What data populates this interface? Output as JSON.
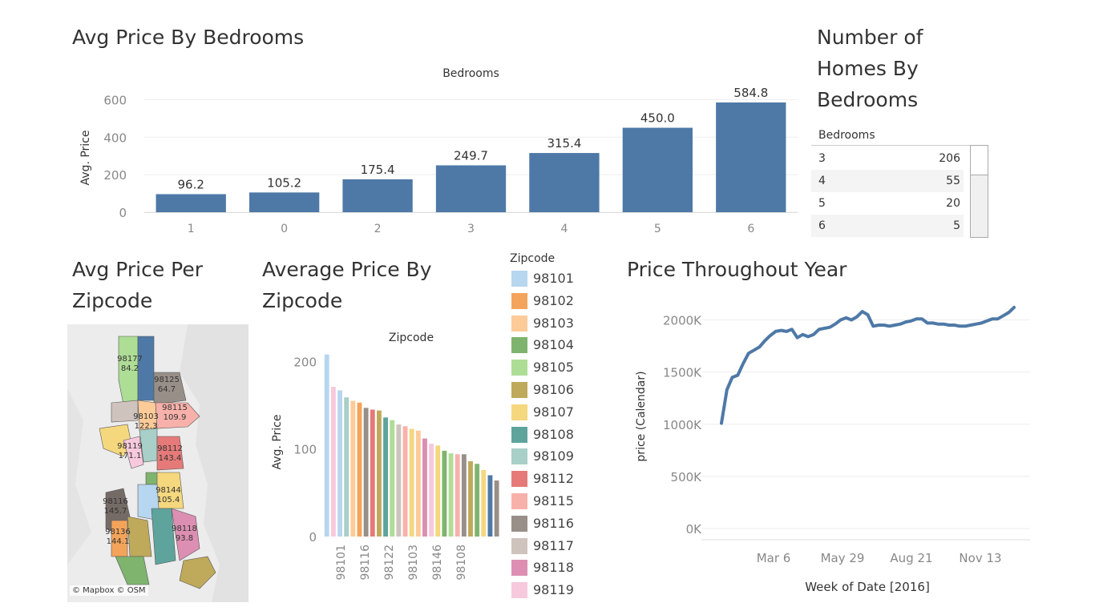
{
  "dashboard": {
    "bedroom_chart_title": "Avg Price By Bedrooms",
    "count_table_title": [
      "Number of",
      "Homes By",
      "Bedrooms"
    ],
    "map_title": [
      "Avg Price Per",
      "Zipcode"
    ],
    "zip_chart_title": [
      "Average Price By",
      "Zipcode"
    ],
    "line_chart_title": "Price Throughout Year"
  },
  "bedroom_table": {
    "header": "Bedrooms",
    "rows": [
      {
        "bedrooms": "3",
        "count": "206"
      },
      {
        "bedrooms": "4",
        "count": "55"
      },
      {
        "bedrooms": "5",
        "count": "20"
      },
      {
        "bedrooms": "6",
        "count": "5"
      }
    ]
  },
  "map": {
    "attribution": "© Mapbox © OSM",
    "labels": [
      {
        "zip": "98177",
        "value": "84.2"
      },
      {
        "zip": "98125",
        "value": "64.7"
      },
      {
        "zip": "98115",
        "value": "109.9"
      },
      {
        "zip": "98103",
        "value": "122.3"
      },
      {
        "zip": "98119",
        "value": "171.1"
      },
      {
        "zip": "98112",
        "value": "143.4"
      },
      {
        "zip": "98144",
        "value": "105.4"
      },
      {
        "zip": "98116",
        "value": "145.7"
      },
      {
        "zip": "98136",
        "value": "144.1"
      },
      {
        "zip": "98118",
        "value": "93.8"
      }
    ]
  },
  "legend": {
    "title": "Zipcode",
    "items": [
      {
        "zip": "98101",
        "color": "#b7d6ef"
      },
      {
        "zip": "98102",
        "color": "#f4a45a"
      },
      {
        "zip": "98103",
        "color": "#fdcb98"
      },
      {
        "zip": "98104",
        "color": "#7fb46f"
      },
      {
        "zip": "98105",
        "color": "#aedd96"
      },
      {
        "zip": "98106",
        "color": "#bfa95a"
      },
      {
        "zip": "98107",
        "color": "#f5d77e"
      },
      {
        "zip": "98108",
        "color": "#5ea49c"
      },
      {
        "zip": "98109",
        "color": "#a8cfc8"
      },
      {
        "zip": "98112",
        "color": "#e57a78"
      },
      {
        "zip": "98115",
        "color": "#f8b1aa"
      },
      {
        "zip": "98116",
        "color": "#988f88"
      },
      {
        "zip": "98117",
        "color": "#cfc3bd"
      },
      {
        "zip": "98118",
        "color": "#dc8fb2"
      },
      {
        "zip": "98119",
        "color": "#f7c9dc"
      }
    ]
  },
  "chart_data": [
    {
      "type": "bar",
      "title": "Avg Price By Bedrooms",
      "header": "Bedrooms",
      "ylabel": "Avg. Price",
      "categories": [
        "1",
        "0",
        "2",
        "3",
        "4",
        "5",
        "6"
      ],
      "values": [
        96.2,
        105.2,
        175.4,
        249.7,
        315.4,
        450.0,
        584.8
      ],
      "value_labels": [
        "96.2",
        "105.2",
        "175.4",
        "249.7",
        "315.4",
        "450.0",
        "584.8"
      ],
      "yticks": [
        "0",
        "200",
        "400",
        "600"
      ],
      "ylim": [
        0,
        640
      ],
      "color": "#4e79a7"
    },
    {
      "type": "bar",
      "title": "Average Price By Zipcode",
      "header": "Zipcode",
      "ylabel": "Avg. Price",
      "values": [
        208,
        171,
        167,
        159,
        155,
        153,
        147,
        145,
        144,
        136,
        133,
        128,
        126,
        123,
        121,
        112,
        106,
        104,
        98,
        95,
        94,
        94,
        86,
        83,
        76,
        70,
        64
      ],
      "colors": [
        "#b7d6ef",
        "#f7c9dc",
        "#b7d6ef",
        "#a8cfc8",
        "#fdcb98",
        "#f4a45a",
        "#988f88",
        "#e57a78",
        "#bfa95a",
        "#5ea49c",
        "#aedd96",
        "#cfc3bd",
        "#f8b1aa",
        "#f5d77e",
        "#fdcb98",
        "#dc8fb2",
        "#f7c9dc",
        "#f5d77e",
        "#7fb46f",
        "#aedd96",
        "#f8b1aa",
        "#988f88",
        "#bfa95a",
        "#7fb46f",
        "#f5d77e",
        "#4e79a7",
        "#988f88"
      ],
      "tick_labels": [
        "98101",
        "98116",
        "98122",
        "98103",
        "98146",
        "98108"
      ],
      "yticks": [
        "0",
        "100",
        "200"
      ],
      "ylim": [
        0,
        215
      ]
    },
    {
      "type": "line",
      "title": "Price Throughout Year",
      "xlabel": "Week of Date [2016]",
      "ylabel": "price (Calendar)",
      "xticks": [
        "Mar 6",
        "May 29",
        "Aug 21",
        "Nov 13"
      ],
      "yticks": [
        "0K",
        "500K",
        "1000K",
        "1500K",
        "2000K"
      ],
      "ylim": [
        0,
        2150
      ],
      "color": "#4e79a7",
      "values": [
        1010,
        1330,
        1450,
        1470,
        1580,
        1680,
        1710,
        1740,
        1800,
        1850,
        1890,
        1900,
        1890,
        1910,
        1830,
        1860,
        1840,
        1860,
        1910,
        1920,
        1930,
        1960,
        2000,
        2020,
        2000,
        2030,
        2080,
        2050,
        1940,
        1950,
        1950,
        1940,
        1950,
        1960,
        1980,
        1990,
        2010,
        2010,
        1970,
        1970,
        1960,
        1960,
        1950,
        1950,
        1940,
        1940,
        1950,
        1960,
        1970,
        1990,
        2010,
        2010,
        2040,
        2070,
        2120
      ]
    }
  ]
}
